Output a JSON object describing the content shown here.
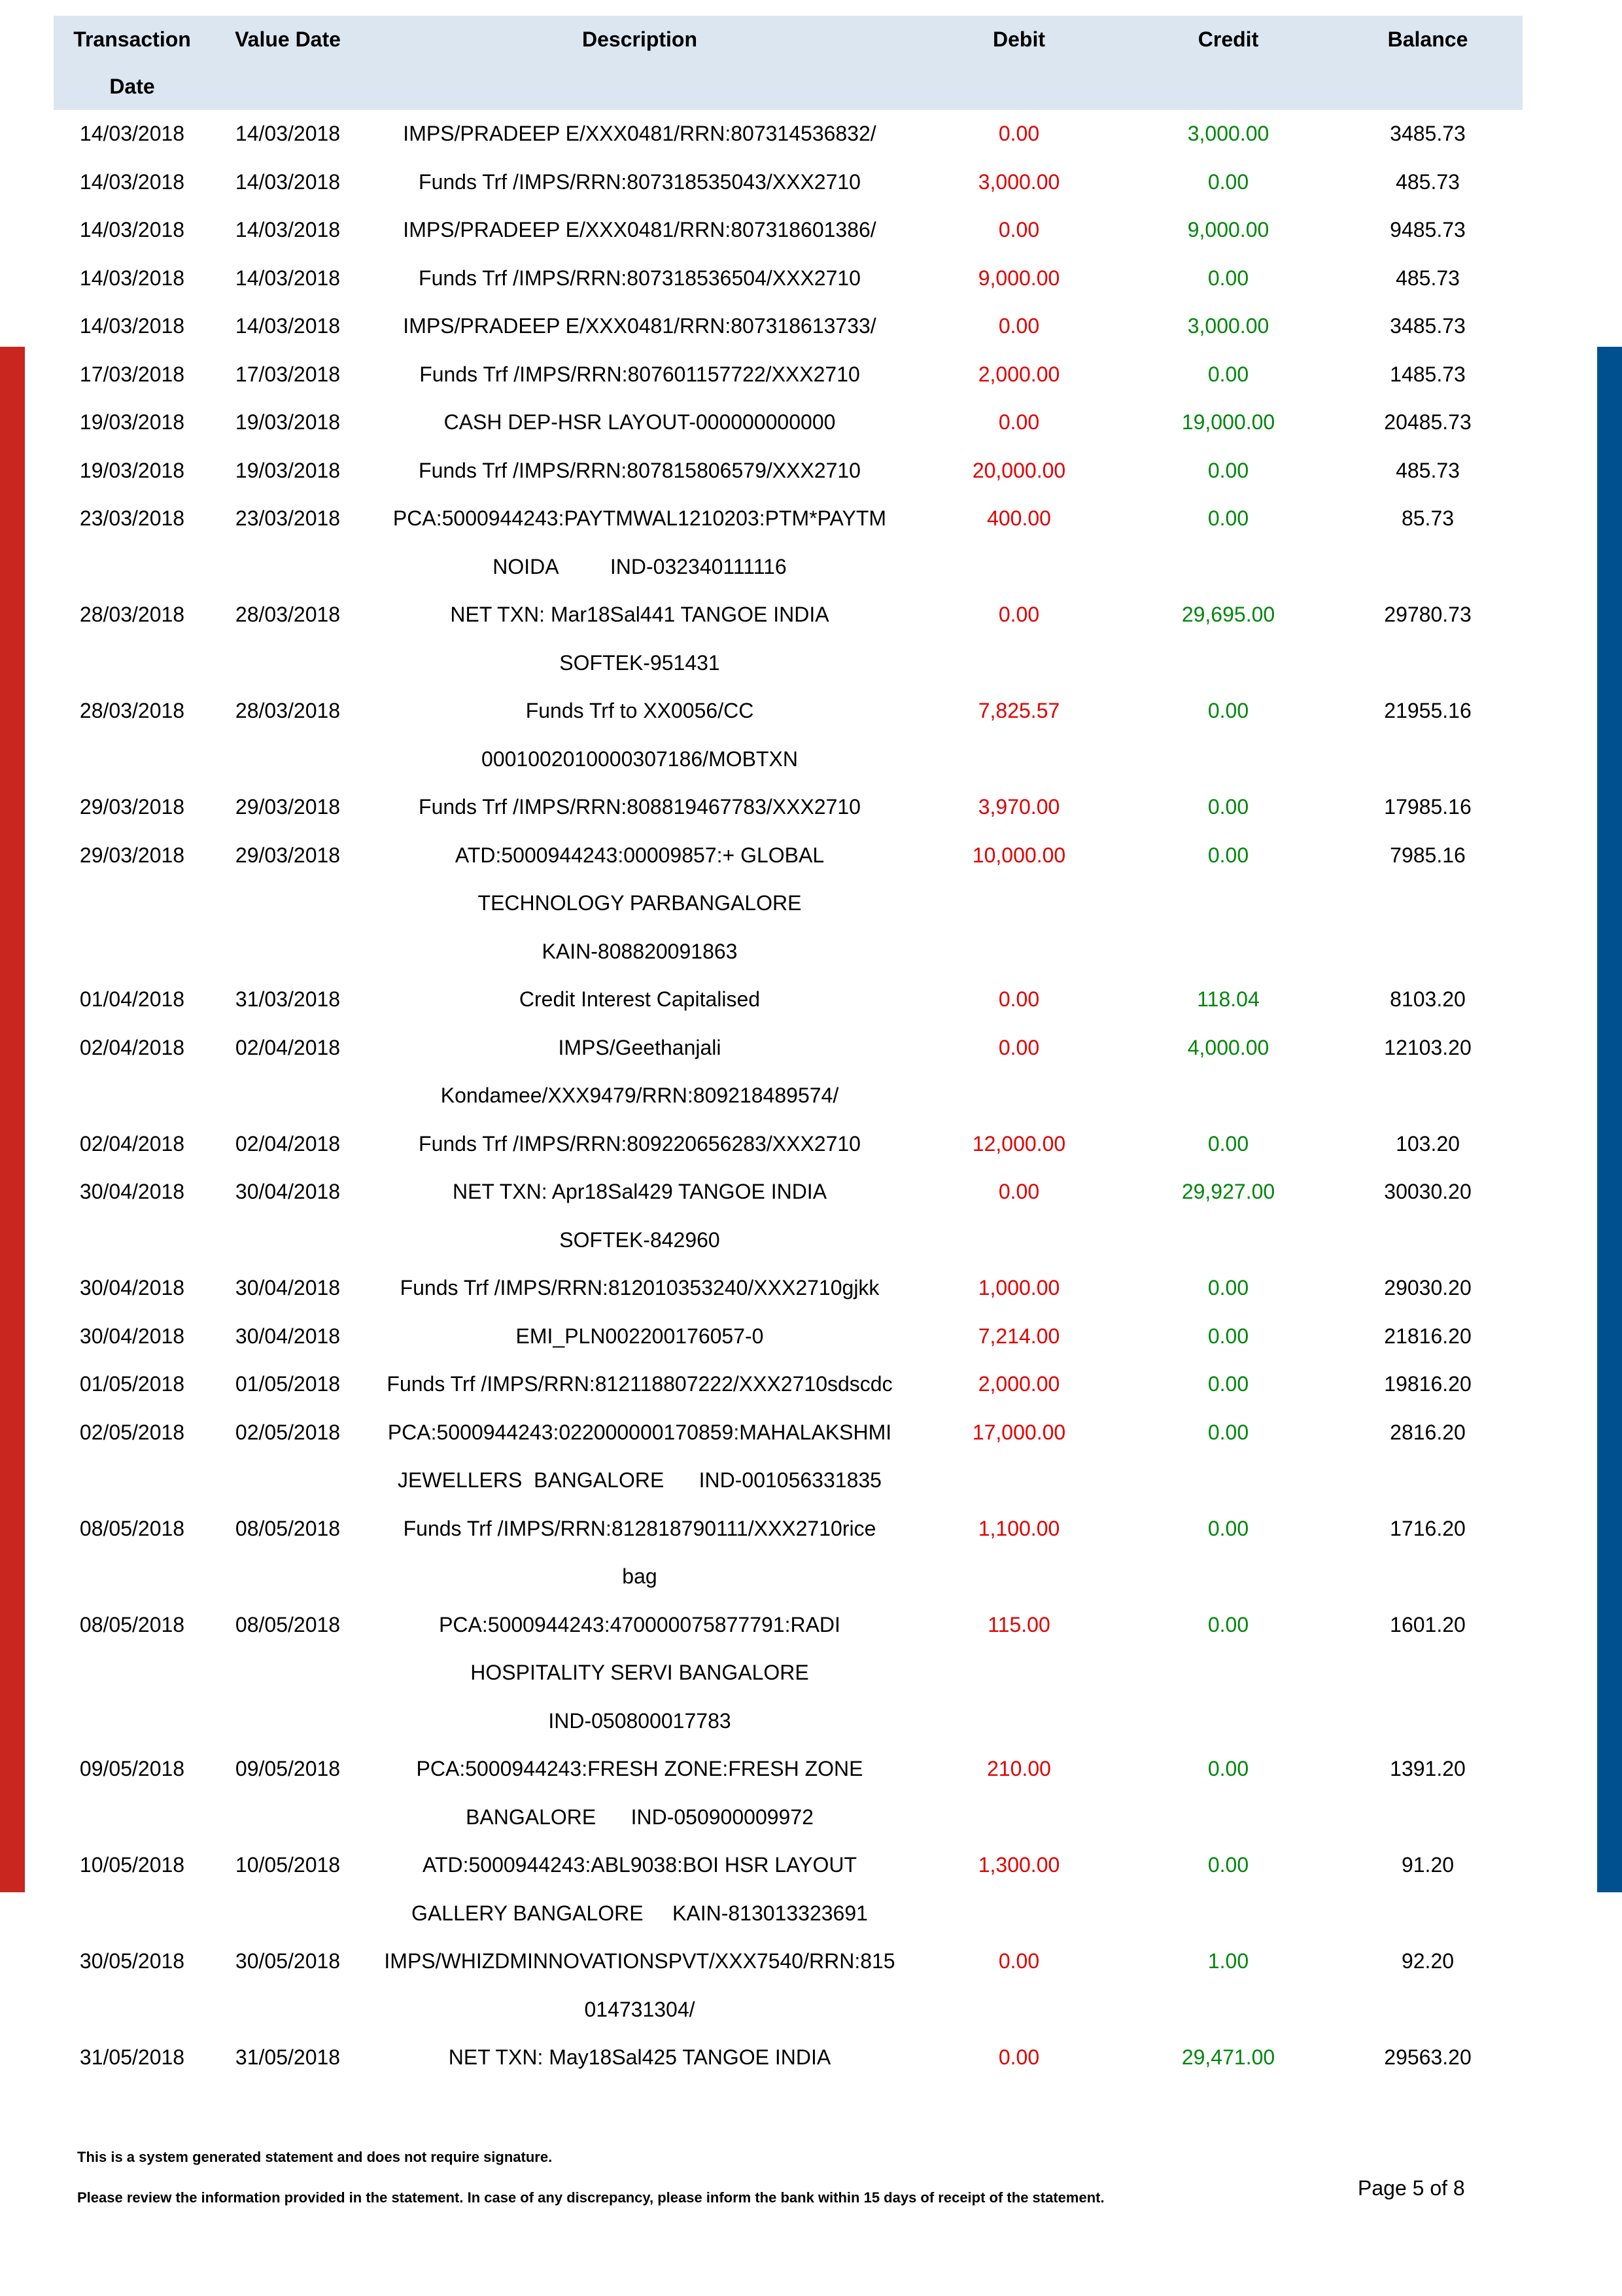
{
  "table": {
    "headers": {
      "txn_date": "Transaction Date",
      "value_date": "Value Date",
      "description": "Description",
      "debit": "Debit",
      "credit": "Credit",
      "balance": "Balance"
    },
    "rows": [
      {
        "txn_date": "14/03/2018",
        "value_date": "14/03/2018",
        "description": "IMPS/PRADEEP E/XXX0481/RRN:807314536832/",
        "debit": "0.00",
        "credit": "3,000.00",
        "balance": "3485.73"
      },
      {
        "txn_date": "14/03/2018",
        "value_date": "14/03/2018",
        "description": "Funds Trf /IMPS/RRN:807318535043/XXX2710",
        "debit": "3,000.00",
        "credit": "0.00",
        "balance": "485.73"
      },
      {
        "txn_date": "14/03/2018",
        "value_date": "14/03/2018",
        "description": "IMPS/PRADEEP E/XXX0481/RRN:807318601386/",
        "debit": "0.00",
        "credit": "9,000.00",
        "balance": "9485.73"
      },
      {
        "txn_date": "14/03/2018",
        "value_date": "14/03/2018",
        "description": "Funds Trf /IMPS/RRN:807318536504/XXX2710",
        "debit": "9,000.00",
        "credit": "0.00",
        "balance": "485.73"
      },
      {
        "txn_date": "14/03/2018",
        "value_date": "14/03/2018",
        "description": "IMPS/PRADEEP E/XXX0481/RRN:807318613733/",
        "debit": "0.00",
        "credit": "3,000.00",
        "balance": "3485.73"
      },
      {
        "txn_date": "17/03/2018",
        "value_date": "17/03/2018",
        "description": "Funds Trf /IMPS/RRN:807601157722/XXX2710",
        "debit": "2,000.00",
        "credit": "0.00",
        "balance": "1485.73"
      },
      {
        "txn_date": "19/03/2018",
        "value_date": "19/03/2018",
        "description": "CASH DEP-HSR LAYOUT-000000000000",
        "debit": "0.00",
        "credit": "19,000.00",
        "balance": "20485.73"
      },
      {
        "txn_date": "19/03/2018",
        "value_date": "19/03/2018",
        "description": "Funds Trf /IMPS/RRN:807815806579/XXX2710",
        "debit": "20,000.00",
        "credit": "0.00",
        "balance": "485.73"
      },
      {
        "txn_date": "23/03/2018",
        "value_date": "23/03/2018",
        "description": "PCA:5000944243:PAYTMWAL1210203:PTM*PAYTM\nNOIDA         IND-032340111116",
        "debit": "400.00",
        "credit": "0.00",
        "balance": "85.73"
      },
      {
        "txn_date": "28/03/2018",
        "value_date": "28/03/2018",
        "description": "NET TXN: Mar18Sal441 TANGOE INDIA\nSOFTEK-951431",
        "debit": "0.00",
        "credit": "29,695.00",
        "balance": "29780.73"
      },
      {
        "txn_date": "28/03/2018",
        "value_date": "28/03/2018",
        "description": "Funds Trf to XX0056/CC\n0001002010000307186/MOBTXN",
        "debit": "7,825.57",
        "credit": "0.00",
        "balance": "21955.16"
      },
      {
        "txn_date": "29/03/2018",
        "value_date": "29/03/2018",
        "description": "Funds Trf /IMPS/RRN:808819467783/XXX2710",
        "debit": "3,970.00",
        "credit": "0.00",
        "balance": "17985.16"
      },
      {
        "txn_date": "29/03/2018",
        "value_date": "29/03/2018",
        "description": "ATD:5000944243:00009857:+ GLOBAL\nTECHNOLOGY PARBANGALORE\nKAIN-808820091863",
        "debit": "10,000.00",
        "credit": "0.00",
        "balance": "7985.16"
      },
      {
        "txn_date": "01/04/2018",
        "value_date": "31/03/2018",
        "description": "Credit Interest Capitalised",
        "debit": "0.00",
        "credit": "118.04",
        "balance": "8103.20"
      },
      {
        "txn_date": "02/04/2018",
        "value_date": "02/04/2018",
        "description": "IMPS/Geethanjali\nKondamee/XXX9479/RRN:809218489574/",
        "debit": "0.00",
        "credit": "4,000.00",
        "balance": "12103.20"
      },
      {
        "txn_date": "02/04/2018",
        "value_date": "02/04/2018",
        "description": "Funds Trf /IMPS/RRN:809220656283/XXX2710",
        "debit": "12,000.00",
        "credit": "0.00",
        "balance": "103.20"
      },
      {
        "txn_date": "30/04/2018",
        "value_date": "30/04/2018",
        "description": "NET TXN: Apr18Sal429 TANGOE INDIA\nSOFTEK-842960",
        "debit": "0.00",
        "credit": "29,927.00",
        "balance": "30030.20"
      },
      {
        "txn_date": "30/04/2018",
        "value_date": "30/04/2018",
        "description": "Funds Trf /IMPS/RRN:812010353240/XXX2710gjkk",
        "debit": "1,000.00",
        "credit": "0.00",
        "balance": "29030.20"
      },
      {
        "txn_date": "30/04/2018",
        "value_date": "30/04/2018",
        "description": "EMI_PLN002200176057-0",
        "debit": "7,214.00",
        "credit": "0.00",
        "balance": "21816.20"
      },
      {
        "txn_date": "01/05/2018",
        "value_date": "01/05/2018",
        "description": "Funds Trf /IMPS/RRN:812118807222/XXX2710sdscdc",
        "debit": "2,000.00",
        "credit": "0.00",
        "balance": "19816.20"
      },
      {
        "txn_date": "02/05/2018",
        "value_date": "02/05/2018",
        "description": "PCA:5000944243:022000000170859:MAHALAKSHMI\nJEWELLERS  BANGALORE      IND-001056331835",
        "debit": "17,000.00",
        "credit": "0.00",
        "balance": "2816.20"
      },
      {
        "txn_date": "08/05/2018",
        "value_date": "08/05/2018",
        "description": "Funds Trf /IMPS/RRN:812818790111/XXX2710rice\nbag",
        "debit": "1,100.00",
        "credit": "0.00",
        "balance": "1716.20"
      },
      {
        "txn_date": "08/05/2018",
        "value_date": "08/05/2018",
        "description": "PCA:5000944243:470000075877791:RADI\nHOSPITALITY SERVI BANGALORE\nIND-050800017783",
        "debit": "115.00",
        "credit": "0.00",
        "balance": "1601.20"
      },
      {
        "txn_date": "09/05/2018",
        "value_date": "09/05/2018",
        "description": "PCA:5000944243:FRESH ZONE:FRESH ZONE\nBANGALORE      IND-050900009972",
        "debit": "210.00",
        "credit": "0.00",
        "balance": "1391.20"
      },
      {
        "txn_date": "10/05/2018",
        "value_date": "10/05/2018",
        "description": "ATD:5000944243:ABL9038:BOI HSR LAYOUT\nGALLERY BANGALORE     KAIN-813013323691",
        "debit": "1,300.00",
        "credit": "0.00",
        "balance": "91.20"
      },
      {
        "txn_date": "30/05/2018",
        "value_date": "30/05/2018",
        "description": "IMPS/WHIZDMINNOVATIONSPVT/XXX7540/RRN:815\n014731304/",
        "debit": "0.00",
        "credit": "1.00",
        "balance": "92.20"
      },
      {
        "txn_date": "31/05/2018",
        "value_date": "31/05/2018",
        "description": "NET TXN: May18Sal425 TANGOE INDIA",
        "debit": "0.00",
        "credit": "29,471.00",
        "balance": "29563.20"
      }
    ]
  },
  "footer": {
    "note1": "This is a system generated statement and does not require signature.",
    "note2": "Please review the information provided in the statement. In case of any discrepancy, please inform the bank within 15 days of receipt of the statement.",
    "page": "Page 5 of 8"
  },
  "colors": {
    "debit": "#e00000",
    "credit": "#00860b",
    "header_bg": "#dce6f1",
    "left_bar": "#c8261f",
    "right_bar": "#00508f"
  }
}
